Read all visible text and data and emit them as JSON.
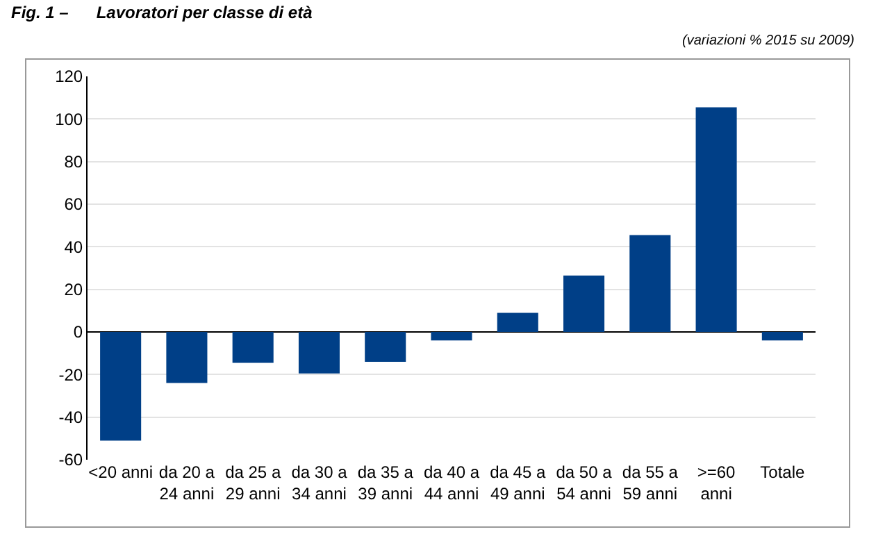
{
  "chart_data": {
    "type": "bar",
    "title": "Fig. 1 –      Lavoratori per classe di età",
    "subtitle": "(variazioni % 2015 su 2009)",
    "categories": [
      "<20 anni",
      "da 20 a\n24 anni",
      "da 25 a\n29 anni",
      "da 30 a\n34 anni",
      "da 35 a\n39 anni",
      "da 40 a\n44 anni",
      "da 45 a\n49 anni",
      "da 50 a\n54 anni",
      "da 55 a\n59 anni",
      ">=60\nanni",
      "Totale"
    ],
    "values": [
      -51,
      -24,
      -14.5,
      -19.5,
      -14,
      -4,
      9,
      26.5,
      45.5,
      105.5,
      -4
    ],
    "color": "#003f87",
    "ylim": [
      -60,
      120
    ],
    "yticks": [
      -60,
      -40,
      -20,
      0,
      20,
      40,
      60,
      80,
      100,
      120
    ],
    "grid": "y",
    "legend": false
  }
}
